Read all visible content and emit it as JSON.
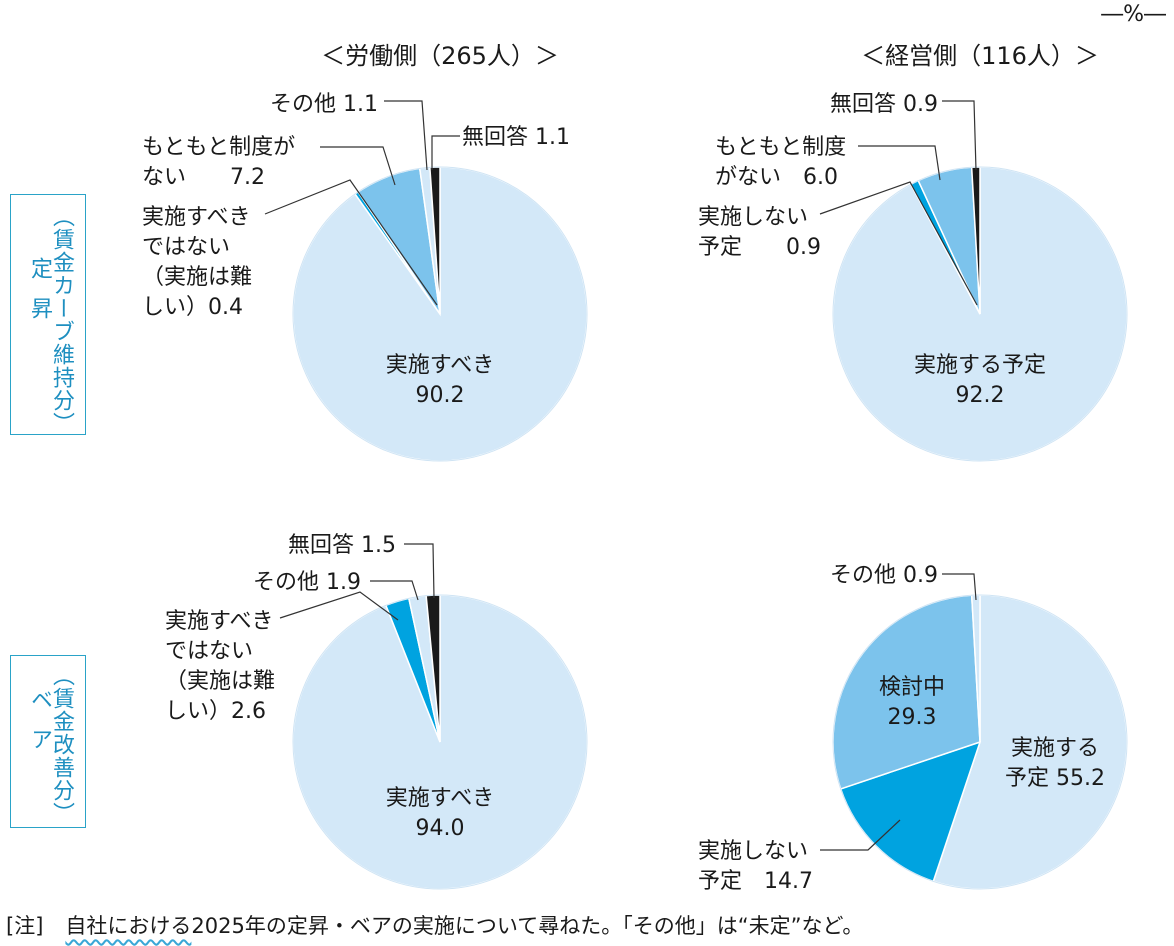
{
  "unit": "―%―",
  "col_titles": [
    "＜労働側（265人）＞",
    "＜経営側（116人）＞"
  ],
  "row_labels": [
    {
      "main": "定昇",
      "sub": "（賃金カーブ維持分）"
    },
    {
      "main": "ベア",
      "sub": "（賃金改善分）"
    }
  ],
  "note": {
    "tag": "[注]",
    "underlined": "自社における",
    "rest": "2025年の定昇・ベアの実施について尋ねた。「その他」は“未定”など。"
  },
  "colors": {
    "light": "#d3e8f8",
    "mid": "#7cc3ec",
    "strong": "#00a3e0",
    "black": "#1a1a1a",
    "accent": "#2aa3c8"
  },
  "chart_data": [
    {
      "type": "pie",
      "panel": "定昇-労働側",
      "slices": [
        {
          "label": "実施すべき",
          "value": 90.2,
          "color": "light"
        },
        {
          "label": "実施すべきではない（実施は難しい）",
          "value": 0.4,
          "color": "strong"
        },
        {
          "label": "もともと制度がない",
          "value": 7.2,
          "color": "mid"
        },
        {
          "label": "その他",
          "value": 1.1,
          "color": "light"
        },
        {
          "label": "無回答",
          "value": 1.1,
          "color": "black"
        }
      ],
      "labels": [
        {
          "lines": [
            "実施すべき",
            "90.2"
          ],
          "inside": true
        },
        {
          "lines": [
            "実施すべき",
            "ではない",
            "（実施は難",
            "しい）0.4"
          ]
        },
        {
          "lines": [
            "もともと制度が",
            "ない　　7.2"
          ]
        },
        {
          "lines": [
            "その他  1.1"
          ]
        },
        {
          "lines": [
            "無回答  1.1"
          ]
        }
      ]
    },
    {
      "type": "pie",
      "panel": "定昇-経営側",
      "slices": [
        {
          "label": "実施する予定",
          "value": 92.2,
          "color": "light"
        },
        {
          "label": "実施しない予定",
          "value": 0.9,
          "color": "strong"
        },
        {
          "label": "もともと制度がない",
          "value": 6.0,
          "color": "mid"
        },
        {
          "label": "無回答",
          "value": 0.9,
          "color": "black"
        }
      ],
      "labels": [
        {
          "lines": [
            "実施する予定",
            "92.2"
          ],
          "inside": true
        },
        {
          "lines": [
            "実施しない",
            "予定　　0.9"
          ]
        },
        {
          "lines": [
            "もともと制度",
            "がない　6.0"
          ]
        },
        {
          "lines": [
            "無回答  0.9"
          ]
        }
      ]
    },
    {
      "type": "pie",
      "panel": "ベア-労働側",
      "slices": [
        {
          "label": "実施すべき",
          "value": 94.0,
          "color": "light"
        },
        {
          "label": "実施すべきではない（実施は難しい）",
          "value": 2.6,
          "color": "strong"
        },
        {
          "label": "その他",
          "value": 1.9,
          "color": "light"
        },
        {
          "label": "無回答",
          "value": 1.5,
          "color": "black"
        }
      ],
      "labels": [
        {
          "lines": [
            "実施すべき",
            "94.0"
          ],
          "inside": true
        },
        {
          "lines": [
            "実施すべき",
            "ではない",
            "（実施は難",
            "しい）2.6"
          ]
        },
        {
          "lines": [
            "その他  1.9"
          ]
        },
        {
          "lines": [
            "無回答  1.5"
          ]
        }
      ]
    },
    {
      "type": "pie",
      "panel": "ベア-経営側",
      "slices": [
        {
          "label": "実施する予定",
          "value": 55.2,
          "color": "light"
        },
        {
          "label": "実施しない予定",
          "value": 14.7,
          "color": "strong"
        },
        {
          "label": "検討中",
          "value": 29.3,
          "color": "mid"
        },
        {
          "label": "その他",
          "value": 0.9,
          "color": "light"
        }
      ],
      "labels": [
        {
          "lines": [
            "実施する",
            "予定  55.2"
          ],
          "inside": true
        },
        {
          "lines": [
            "実施しない",
            "予定　14.7"
          ]
        },
        {
          "lines": [
            "検討中",
            "29.3"
          ],
          "inside": true
        },
        {
          "lines": [
            "その他  0.9"
          ]
        }
      ]
    }
  ]
}
